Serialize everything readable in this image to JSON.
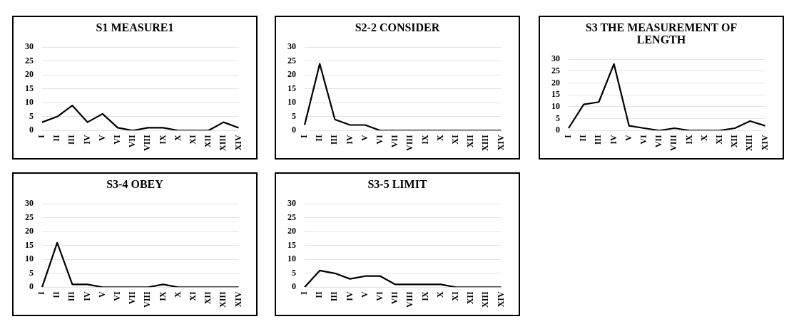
{
  "chart_data": [
    {
      "type": "line",
      "title": "S1 MEASURE1",
      "categories": [
        "I",
        "II",
        "III",
        "IV",
        "V",
        "VI",
        "VII",
        "VIII",
        "IX",
        "X",
        "XI",
        "XII",
        "XIII",
        "XIV"
      ],
      "values": [
        3,
        5,
        9,
        3,
        6,
        1,
        0,
        1,
        1,
        0,
        0,
        0,
        3,
        1
      ],
      "color": "#000000",
      "ylim": [
        0,
        30
      ],
      "yticks": [
        0,
        5,
        10,
        15,
        20,
        25,
        30
      ],
      "grid": "y"
    },
    {
      "type": "line",
      "title": "S2-2 CONSIDER",
      "categories": [
        "I",
        "II",
        "III",
        "IV",
        "V",
        "VI",
        "VII",
        "VIII",
        "IX",
        "X",
        "XI",
        "XII",
        "XIII",
        "XIV"
      ],
      "values": [
        2,
        24,
        4,
        2,
        2,
        0,
        0,
        0,
        0,
        0,
        0,
        0,
        0,
        0
      ],
      "color": "#000000",
      "ylim": [
        0,
        30
      ],
      "yticks": [
        0,
        5,
        10,
        15,
        20,
        25,
        30
      ],
      "grid": "y"
    },
    {
      "type": "line",
      "title": "S3 THE MEASUREMENT OF LENGTH",
      "categories": [
        "I",
        "II",
        "III",
        "IV",
        "V",
        "VI",
        "VII",
        "VIII",
        "IX",
        "X",
        "XI",
        "XII",
        "XIII",
        "XIV"
      ],
      "values": [
        1,
        11,
        12,
        28,
        2,
        1,
        0,
        1,
        0,
        0,
        0,
        1,
        4,
        2
      ],
      "color": "#000000",
      "ylim": [
        0,
        30
      ],
      "yticks": [
        0,
        5,
        10,
        15,
        20,
        25,
        30
      ],
      "grid": "y"
    },
    {
      "type": "line",
      "title": "S3-4 OBEY",
      "categories": [
        "I",
        "II",
        "III",
        "IV",
        "V",
        "VI",
        "VII",
        "VIII",
        "IX",
        "X",
        "XI",
        "XII",
        "XIII",
        "XIV"
      ],
      "values": [
        0,
        16,
        1,
        1,
        0,
        0,
        0,
        0,
        1,
        0,
        0,
        0,
        0,
        0
      ],
      "color": "#000000",
      "ylim": [
        0,
        30
      ],
      "yticks": [
        0,
        5,
        10,
        15,
        20,
        25,
        30
      ],
      "grid": "y"
    },
    {
      "type": "line",
      "title": "S3-5 LIMIT",
      "categories": [
        "I",
        "II",
        "III",
        "IV",
        "V",
        "VI",
        "VII",
        "VIII",
        "IX",
        "X",
        "XI",
        "XII",
        "XIII",
        "XIV"
      ],
      "values": [
        0,
        6,
        5,
        3,
        4,
        4,
        1,
        1,
        1,
        1,
        0,
        0,
        0,
        0
      ],
      "color": "#000000",
      "ylim": [
        0,
        30
      ],
      "yticks": [
        0,
        5,
        10,
        15,
        20,
        25,
        30
      ],
      "grid": "y"
    }
  ]
}
